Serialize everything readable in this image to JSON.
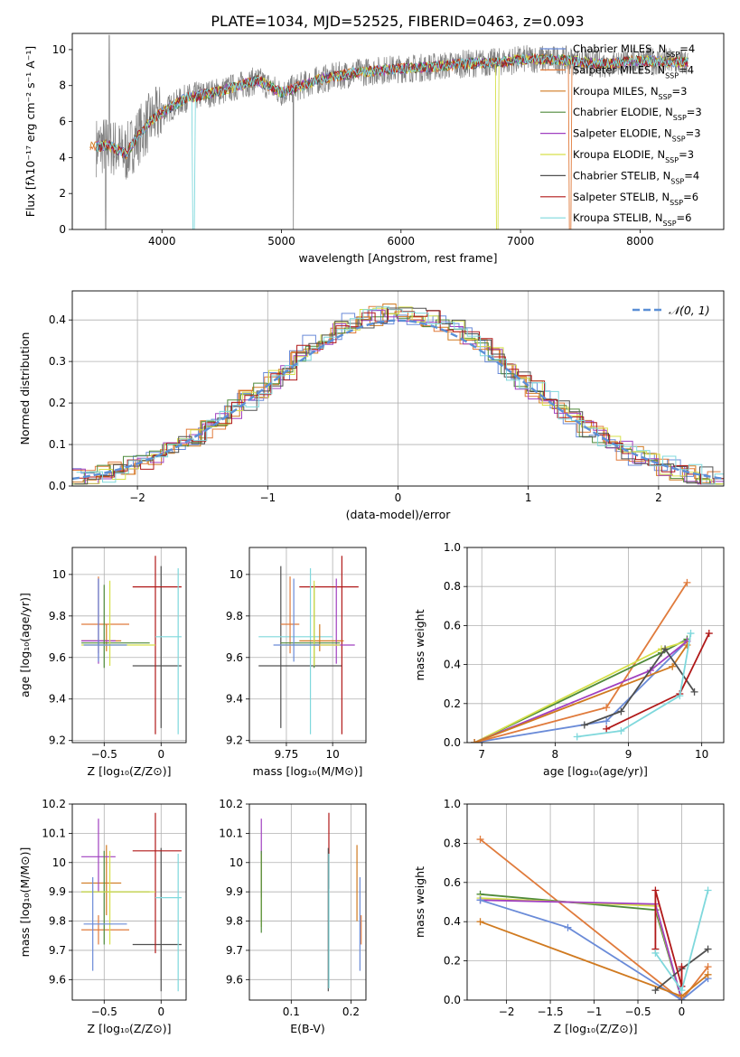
{
  "figure": {
    "title": "PLATE=1034, MJD=52525, FIBERID=0463, z=0.093"
  },
  "series": [
    {
      "name": "Chabrier MILES, N",
      "sub": "SSP",
      "tail": "=4",
      "color": "#6a8bd8"
    },
    {
      "name": "Salpeter MILES, N",
      "sub": "SSP",
      "tail": "=4",
      "color": "#e07b3c"
    },
    {
      "name": "Kroupa MILES, N",
      "sub": "SSP",
      "tail": "=3",
      "color": "#d07a20"
    },
    {
      "name": "Chabrier ELODIE, N",
      "sub": "SSP",
      "tail": "=3",
      "color": "#4f8a3a"
    },
    {
      "name": "Salpeter ELODIE, N",
      "sub": "SSP",
      "tail": "=3",
      "color": "#a040c0"
    },
    {
      "name": "Kroupa ELODIE, N",
      "sub": "SSP",
      "tail": "=3",
      "color": "#d6e04a"
    },
    {
      "name": "Chabrier STELIB, N",
      "sub": "SSP",
      "tail": "=4",
      "color": "#505050"
    },
    {
      "name": "Salpeter STELIB, N",
      "sub": "SSP",
      "tail": "=6",
      "color": "#b01818"
    },
    {
      "name": "Kroupa STELIB, N",
      "sub": "SSP",
      "tail": "=6",
      "color": "#7fd8dc"
    }
  ],
  "chart_data": [
    {
      "id": "spectrum",
      "type": "line",
      "xlabel": "wavelength [Angstrom, rest frame]",
      "ylabel": "Flux [fλ10⁻¹⁷ erg cm⁻² s⁻¹ A⁻¹]",
      "xlim": [
        3250,
        8700
      ],
      "ylim": [
        0,
        10.9
      ],
      "xticks": [
        4000,
        5000,
        6000,
        7000,
        8000
      ],
      "yticks": [
        0,
        2,
        4,
        6,
        8,
        10
      ],
      "grid": false,
      "legend": "right",
      "data_color": "#808080",
      "data_anchor": {
        "x": [
          3450,
          3550,
          3700,
          3800,
          3900,
          4000,
          4200,
          4500,
          4800,
          5000,
          5300,
          5600,
          5900,
          6200,
          6500,
          6800,
          7100,
          7400,
          7700,
          8000,
          8300,
          8400
        ],
        "y": [
          4.6,
          4.7,
          4.2,
          5.2,
          6.0,
          6.5,
          7.3,
          7.7,
          8.3,
          7.6,
          8.3,
          8.7,
          8.9,
          9.0,
          9.2,
          9.3,
          9.5,
          9.4,
          9.2,
          9.4,
          9.3,
          9.3
        ]
      }
    },
    {
      "id": "residuals",
      "type": "line",
      "xlabel": "(data-model)/error",
      "ylabel": "Normed distribution",
      "xlim": [
        -2.5,
        2.5
      ],
      "ylim": [
        0,
        0.47
      ],
      "xticks": [
        -2,
        -1,
        0,
        1,
        2
      ],
      "yticks": [
        0.0,
        0.1,
        0.2,
        0.3,
        0.4
      ],
      "grid": true,
      "legend": "top-right",
      "normal_label": "𝒩(0, 1)",
      "normal_color": "#5b8fd6"
    },
    {
      "id": "z-age",
      "type": "scatter",
      "xlabel": "Z [log₁₀(Z/Z⊙)]",
      "ylabel": "age  [log₁₀(age/yr)]",
      "xlim": [
        -0.78,
        0.22
      ],
      "ylim": [
        9.19,
        10.13
      ],
      "xticks": [
        -0.5,
        0.0
      ],
      "yticks": [
        9.2,
        9.4,
        9.6,
        9.8,
        10.0
      ],
      "grid": true,
      "points": [
        {
          "s": 6,
          "x": 0.0,
          "xe": [
            -0.25,
            0.18
          ],
          "y": 9.56,
          "ye": [
            9.26,
            10.04
          ]
        },
        {
          "s": 7,
          "x": -0.05,
          "xe": [
            -0.25,
            0.18
          ],
          "y": 9.94,
          "ye": [
            9.23,
            10.09
          ]
        },
        {
          "s": 8,
          "x": 0.15,
          "xe": [
            -0.05,
            0.18
          ],
          "y": 9.7,
          "ye": [
            9.23,
            10.03
          ]
        },
        {
          "s": 1,
          "x": -0.55,
          "xe": [
            -0.7,
            -0.28
          ],
          "y": 9.76,
          "ye": [
            9.62,
            9.99
          ]
        },
        {
          "s": 2,
          "x": -0.48,
          "xe": [
            -0.7,
            -0.35
          ],
          "y": 9.68,
          "ye": [
            9.63,
            9.76
          ]
        },
        {
          "s": 4,
          "x": -0.55,
          "xe": [
            -0.7,
            -0.4
          ],
          "y": 9.68,
          "ye": [
            9.57,
            9.98
          ]
        },
        {
          "s": 3,
          "x": -0.5,
          "xe": [
            -0.7,
            -0.1
          ],
          "y": 9.67,
          "ye": [
            9.55,
            9.95
          ]
        },
        {
          "s": 5,
          "x": -0.45,
          "xe": [
            -0.7,
            -0.05
          ],
          "y": 9.66,
          "ye": [
            9.56,
            9.97
          ]
        },
        {
          "s": 0,
          "x": -0.55,
          "xe": [
            -0.68,
            -0.3
          ],
          "y": 9.66,
          "ye": [
            9.58,
            9.98
          ]
        }
      ]
    },
    {
      "id": "mass-age",
      "type": "scatter",
      "xlabel": "mass [log₁₀(M/M⊙)]",
      "ylabel": "",
      "xlim": [
        9.55,
        10.18
      ],
      "ylim": [
        9.19,
        10.13
      ],
      "xticks": [
        9.75,
        10.0
      ],
      "yticks": [
        9.2,
        9.4,
        9.6,
        9.8,
        10.0
      ],
      "grid": true,
      "points": [
        {
          "s": 6,
          "x": 9.72,
          "xe": [
            9.6,
            10.05
          ],
          "y": 9.56,
          "ye": [
            9.26,
            10.04
          ]
        },
        {
          "s": 7,
          "x": 10.05,
          "xe": [
            9.82,
            10.14
          ],
          "y": 9.94,
          "ye": [
            9.23,
            10.09
          ]
        },
        {
          "s": 8,
          "x": 9.88,
          "xe": [
            9.6,
            10.0
          ],
          "y": 9.7,
          "ye": [
            9.23,
            10.03
          ]
        },
        {
          "s": 1,
          "x": 9.77,
          "xe": [
            9.72,
            9.82
          ],
          "y": 9.76,
          "ye": [
            9.62,
            9.99
          ]
        },
        {
          "s": 2,
          "x": 9.93,
          "xe": [
            9.82,
            10.06
          ],
          "y": 9.68,
          "ye": [
            9.63,
            9.76
          ]
        },
        {
          "s": 4,
          "x": 10.02,
          "xe": [
            9.9,
            10.12
          ],
          "y": 9.66,
          "ye": [
            9.57,
            9.98
          ]
        },
        {
          "s": 3,
          "x": 9.9,
          "xe": [
            9.72,
            10.04
          ],
          "y": 9.67,
          "ye": [
            9.55,
            9.95
          ]
        },
        {
          "s": 5,
          "x": 9.9,
          "xe": [
            9.72,
            10.04
          ],
          "y": 9.66,
          "ye": [
            9.56,
            9.97
          ]
        },
        {
          "s": 0,
          "x": 9.79,
          "xe": [
            9.68,
            9.93
          ],
          "y": 9.66,
          "ye": [
            9.58,
            9.98
          ]
        }
      ]
    },
    {
      "id": "age-weight",
      "type": "line",
      "xlabel": "age  [log₁₀(age/yr)]",
      "ylabel": "mass weight",
      "xlim": [
        6.8,
        10.3
      ],
      "ylim": [
        0,
        1.0
      ],
      "xticks": [
        7,
        8,
        9,
        10
      ],
      "yticks": [
        0.0,
        0.2,
        0.4,
        0.6,
        0.8,
        1.0
      ],
      "grid": true,
      "lines": [
        {
          "s": 0,
          "x": [
            6.9,
            8.7,
            9.8
          ],
          "y": [
            0.0,
            0.11,
            0.52
          ]
        },
        {
          "s": 1,
          "x": [
            6.9,
            8.7,
            9.8
          ],
          "y": [
            0.0,
            0.18,
            0.82
          ]
        },
        {
          "s": 3,
          "x": [
            6.9,
            9.45,
            9.8
          ],
          "y": [
            0.0,
            0.46,
            0.53
          ]
        },
        {
          "s": 5,
          "x": [
            6.9,
            9.45,
            9.8
          ],
          "y": [
            0.0,
            0.48,
            0.52
          ]
        },
        {
          "s": 4,
          "x": [
            6.9,
            9.3,
            9.8
          ],
          "y": [
            0.0,
            0.37,
            0.52
          ]
        },
        {
          "s": 2,
          "x": [
            6.9,
            9.6,
            9.8
          ],
          "y": [
            0.0,
            0.39,
            0.5
          ]
        },
        {
          "s": 6,
          "x": [
            8.4,
            8.9,
            9.5,
            9.9
          ],
          "y": [
            0.09,
            0.16,
            0.48,
            0.26
          ]
        },
        {
          "s": 7,
          "x": [
            8.7,
            9.7,
            10.1
          ],
          "y": [
            0.07,
            0.25,
            0.56
          ]
        },
        {
          "s": 8,
          "x": [
            8.3,
            8.9,
            9.7,
            9.85
          ],
          "y": [
            0.03,
            0.06,
            0.24,
            0.56
          ]
        }
      ]
    },
    {
      "id": "z-mass",
      "type": "scatter",
      "xlabel": "Z [log₁₀(Z/Z⊙)]",
      "ylabel": "mass [log₁₀(M/M⊙)]",
      "xlim": [
        -0.78,
        0.22
      ],
      "ylim": [
        9.53,
        10.2
      ],
      "xticks": [
        -0.5,
        0.0
      ],
      "yticks": [
        9.6,
        9.7,
        9.8,
        9.9,
        10.0,
        10.1,
        10.2
      ],
      "grid": true,
      "points": [
        {
          "s": 6,
          "x": 0.0,
          "xe": [
            -0.25,
            0.18
          ],
          "y": 9.72,
          "ye": [
            9.56,
            10.05
          ]
        },
        {
          "s": 7,
          "x": -0.05,
          "xe": [
            -0.25,
            0.18
          ],
          "y": 10.04,
          "ye": [
            9.69,
            10.17
          ]
        },
        {
          "s": 8,
          "x": 0.15,
          "xe": [
            -0.05,
            0.18
          ],
          "y": 9.88,
          "ye": [
            9.56,
            10.03
          ]
        },
        {
          "s": 1,
          "x": -0.55,
          "xe": [
            -0.7,
            -0.28
          ],
          "y": 9.77,
          "ye": [
            9.72,
            9.82
          ]
        },
        {
          "s": 2,
          "x": -0.48,
          "xe": [
            -0.7,
            -0.35
          ],
          "y": 9.93,
          "ye": [
            9.82,
            10.06
          ]
        },
        {
          "s": 4,
          "x": -0.55,
          "xe": [
            -0.7,
            -0.4
          ],
          "y": 10.02,
          "ye": [
            9.9,
            10.15
          ]
        },
        {
          "s": 3,
          "x": -0.5,
          "xe": [
            -0.7,
            -0.1
          ],
          "y": 9.9,
          "ye": [
            9.72,
            10.04
          ]
        },
        {
          "s": 5,
          "x": -0.45,
          "xe": [
            -0.7,
            -0.05
          ],
          "y": 9.9,
          "ye": [
            9.72,
            10.04
          ]
        },
        {
          "s": 0,
          "x": -0.6,
          "xe": [
            -0.68,
            -0.3
          ],
          "y": 9.79,
          "ye": [
            9.63,
            9.95
          ]
        }
      ]
    },
    {
      "id": "ebv-mass",
      "type": "scatter",
      "xlabel": "E(B-V)",
      "ylabel": "",
      "xlim": [
        0.03,
        0.225
      ],
      "ylim": [
        9.53,
        10.2
      ],
      "xticks": [
        0.1,
        0.2
      ],
      "yticks": [
        9.6,
        9.7,
        9.8,
        9.9,
        10.0,
        10.1,
        10.2
      ],
      "grid": true,
      "points": [
        {
          "s": 4,
          "x": 0.05,
          "y": 10.02,
          "ye": [
            9.88,
            10.15
          ]
        },
        {
          "s": 5,
          "x": 0.05,
          "y": 9.9,
          "ye": [
            9.78,
            10.03
          ]
        },
        {
          "s": 3,
          "x": 0.05,
          "y": 9.9,
          "ye": [
            9.76,
            10.04
          ]
        },
        {
          "s": 7,
          "x": 0.163,
          "y": 10.04,
          "ye": [
            9.91,
            10.17
          ]
        },
        {
          "s": 6,
          "x": 0.162,
          "y": 9.72,
          "ye": [
            9.56,
            10.05
          ]
        },
        {
          "s": 8,
          "x": 0.163,
          "y": 9.88,
          "ye": [
            9.57,
            10.03
          ]
        },
        {
          "s": 2,
          "x": 0.21,
          "y": 9.93,
          "ye": [
            9.8,
            10.06
          ]
        },
        {
          "s": 0,
          "x": 0.215,
          "y": 9.79,
          "ye": [
            9.63,
            9.95
          ]
        },
        {
          "s": 1,
          "x": 0.217,
          "y": 9.77,
          "ye": [
            9.72,
            9.82
          ]
        }
      ]
    },
    {
      "id": "z-weight",
      "type": "line",
      "xlabel": "Z [log₁₀(Z/Z⊙)]",
      "ylabel": "mass weight",
      "xlim": [
        -2.45,
        0.48
      ],
      "ylim": [
        0,
        1.0
      ],
      "xticks": [
        -2.0,
        -1.5,
        -1.0,
        -0.5,
        0.0
      ],
      "yticks": [
        0.0,
        0.2,
        0.4,
        0.6,
        0.8,
        1.0
      ],
      "grid": true,
      "lines": [
        {
          "s": 1,
          "x": [
            -2.3,
            0.0,
            0.3
          ],
          "y": [
            0.82,
            0.0,
            0.17
          ]
        },
        {
          "s": 3,
          "x": [
            -2.3,
            -0.3,
            0.0
          ],
          "y": [
            0.54,
            0.46,
            0.0
          ]
        },
        {
          "s": 5,
          "x": [
            -2.3,
            -0.3,
            0.0
          ],
          "y": [
            0.52,
            0.48,
            0.0
          ]
        },
        {
          "s": 4,
          "x": [
            -2.3,
            -0.3,
            0.0
          ],
          "y": [
            0.51,
            0.49,
            0.0
          ]
        },
        {
          "s": 0,
          "x": [
            -2.3,
            -1.3,
            0.0,
            0.3
          ],
          "y": [
            0.51,
            0.37,
            0.0,
            0.11
          ]
        },
        {
          "s": 2,
          "x": [
            -2.3,
            0.0,
            0.3
          ],
          "y": [
            0.4,
            0.02,
            0.13
          ]
        },
        {
          "s": 6,
          "x": [
            -0.3,
            0.0,
            0.3
          ],
          "y": [
            0.05,
            0.16,
            0.26
          ]
        },
        {
          "s": 7,
          "x": [
            -0.3,
            -0.3,
            0.0,
            0.0
          ],
          "y": [
            0.26,
            0.56,
            0.07,
            0.17
          ]
        },
        {
          "s": 8,
          "x": [
            -0.3,
            0.0,
            0.3
          ],
          "y": [
            0.24,
            0.05,
            0.56
          ]
        }
      ]
    }
  ]
}
